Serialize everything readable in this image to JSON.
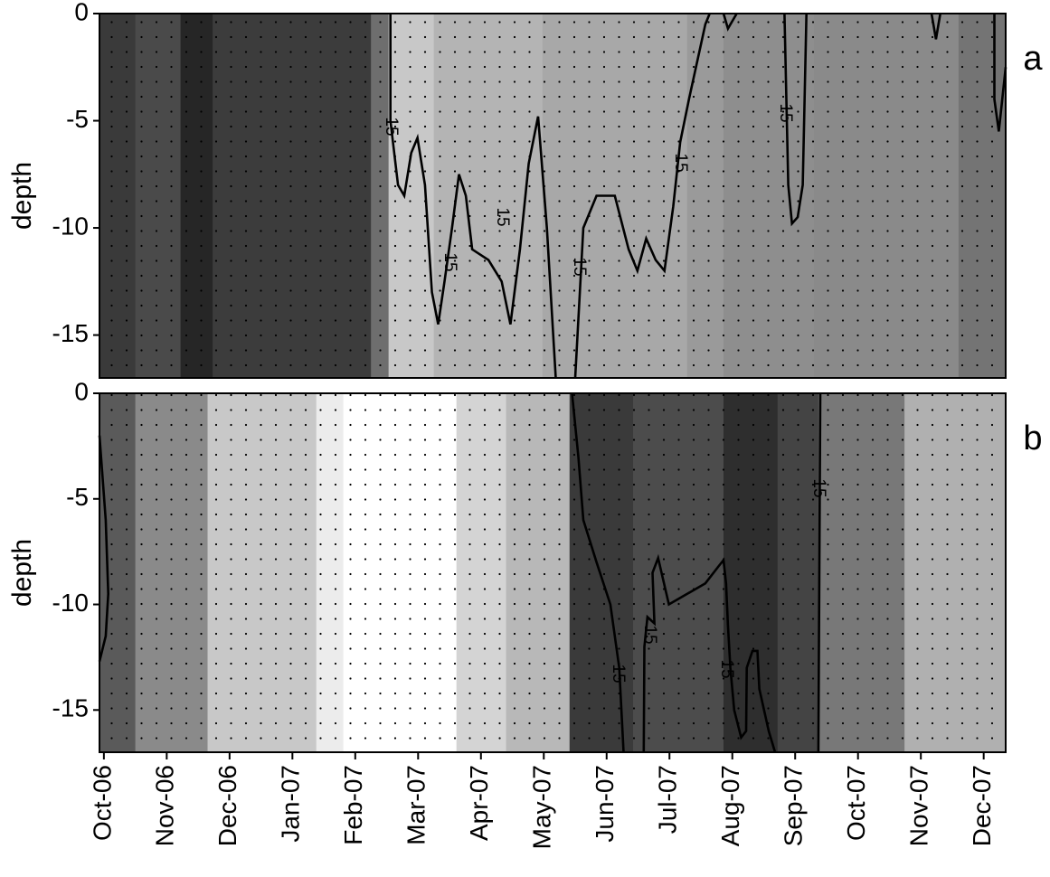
{
  "chart_data": [
    {
      "type": "contour",
      "panel_label": "a",
      "y_label": "depth",
      "xlim": [
        -0.07,
        14.35
      ],
      "ylim": [
        -17,
        0
      ],
      "yticks": [
        0,
        -5,
        -10,
        -15
      ],
      "shading": {
        "x": [
          -0.07,
          0.5,
          1.22,
          1.73,
          4.25,
          4.53,
          5.25,
          6.98,
          9.28,
          9.86,
          11.3,
          13.6,
          14.35
        ],
        "colors": [
          "#3a3a3a",
          "#4a4a4a",
          "#262626",
          "#3c3c3c",
          "#6e6e6e",
          "#c8c8c8",
          "#b4b4b4",
          "#a8a8a8",
          "#9a9a9a",
          "#8e8e8e",
          "#8a8a8a",
          "#747474"
        ]
      },
      "contour": {
        "level": 15,
        "color": "#000000",
        "x": [
          4.56,
          4.56,
          4.68,
          4.78,
          4.89,
          4.99,
          5.11,
          5.22,
          5.32,
          5.42,
          5.54,
          5.65,
          5.76,
          5.86,
          6.12,
          6.33,
          6.47,
          6.62,
          6.76,
          6.91,
          7.05,
          7.19,
          null,
          7.5,
          7.63,
          7.84,
          8.13,
          8.35,
          8.49,
          8.63,
          8.78,
          8.92,
          9.06,
          9.17,
          9.31,
          9.57,
          9.64,
          null,
          9.86,
          9.93,
          10.07,
          null,
          10.83,
          10.89,
          10.95,
          11.04,
          11.12,
          11.18,
          null,
          13.17,
          13.24,
          13.31,
          null,
          14.17,
          14.17,
          14.24,
          14.35
        ],
        "y": [
          0,
          -5,
          -8,
          -8.5,
          -6.5,
          -5.8,
          -8,
          -13,
          -14.5,
          -12.5,
          -10,
          -7.5,
          -8.5,
          -11,
          -11.5,
          -12.5,
          -14.5,
          -11,
          -7,
          -4.8,
          -10,
          -17,
          null,
          -17,
          -10,
          -8.5,
          -8.5,
          -11,
          -12,
          -10.5,
          -11.5,
          -12,
          -9,
          -6,
          -4,
          -0.5,
          0,
          null,
          0,
          -0.7,
          0,
          null,
          0,
          -8,
          -9.8,
          -9.5,
          -8,
          0,
          null,
          0,
          -1.2,
          0,
          null,
          0,
          -4,
          -5.5,
          -2.5
        ]
      }
    },
    {
      "type": "contour",
      "panel_label": "b",
      "y_label": "depth",
      "xlim": [
        -0.07,
        14.35
      ],
      "ylim": [
        -17,
        0
      ],
      "yticks": [
        0,
        -5,
        -10,
        -15
      ],
      "xticks": [
        {
          "value": 0,
          "label": "Oct-06"
        },
        {
          "value": 1,
          "label": "Nov-06"
        },
        {
          "value": 2,
          "label": "Dec-06"
        },
        {
          "value": 3,
          "label": "Jan-07"
        },
        {
          "value": 4,
          "label": "Feb-07"
        },
        {
          "value": 5,
          "label": "Mar-07"
        },
        {
          "value": 6,
          "label": "Apr-07"
        },
        {
          "value": 7,
          "label": "May-07"
        },
        {
          "value": 8,
          "label": "Jun-07"
        },
        {
          "value": 9,
          "label": "Jul-07"
        },
        {
          "value": 10,
          "label": "Aug-07"
        },
        {
          "value": 11,
          "label": "Sep-07"
        },
        {
          "value": 12,
          "label": "Oct-07"
        },
        {
          "value": 13,
          "label": "Nov-07"
        },
        {
          "value": 14,
          "label": "Dec-07"
        }
      ],
      "shading": {
        "x": [
          -0.07,
          0.5,
          1.65,
          3.38,
          3.81,
          5.61,
          6.4,
          7.41,
          8.42,
          9.86,
          10.72,
          11.37,
          12.74,
          14.35
        ],
        "colors": [
          "#5a5a5a",
          "#8a8a8a",
          "#c8c8c8",
          "#ececec",
          "#ffffff",
          "#d4d4d4",
          "#b8b8b8",
          "#3a3a3a",
          "#4c4c4c",
          "#2e2e2e",
          "#444444",
          "#787878",
          "#b0b0b0"
        ]
      },
      "contour": {
        "level": 15,
        "color": "#000000",
        "x": [
          -0.07,
          0.03,
          0.07,
          0.03,
          -0.07,
          null,
          7.45,
          7.55,
          7.63,
          7.84,
          8.06,
          8.2,
          8.27,
          null,
          8.59,
          8.6,
          8.65,
          8.76,
          8.73,
          8.82,
          8.99,
          9.28,
          9.57,
          9.78,
          9.86,
          9.9,
          9.93,
          9.97,
          10.03,
          10.14,
          10.22,
          10.23,
          10.32,
          10.4,
          10.43,
          10.58,
          10.68,
          null,
          11.4,
          11.37
        ],
        "y": [
          -2,
          -6,
          -9.5,
          -11.5,
          -12.7,
          null,
          0,
          -3,
          -6,
          -8,
          -10,
          -13,
          -17,
          null,
          -17,
          -12,
          -10.6,
          -10.9,
          -8.5,
          -7.8,
          -10,
          -9.5,
          -9,
          -8.2,
          -7.9,
          -9,
          -11,
          -13,
          -15,
          -16.3,
          -16,
          -13,
          -12.2,
          -12.2,
          -14,
          -16,
          -17,
          null,
          0,
          -17
        ]
      }
    }
  ]
}
